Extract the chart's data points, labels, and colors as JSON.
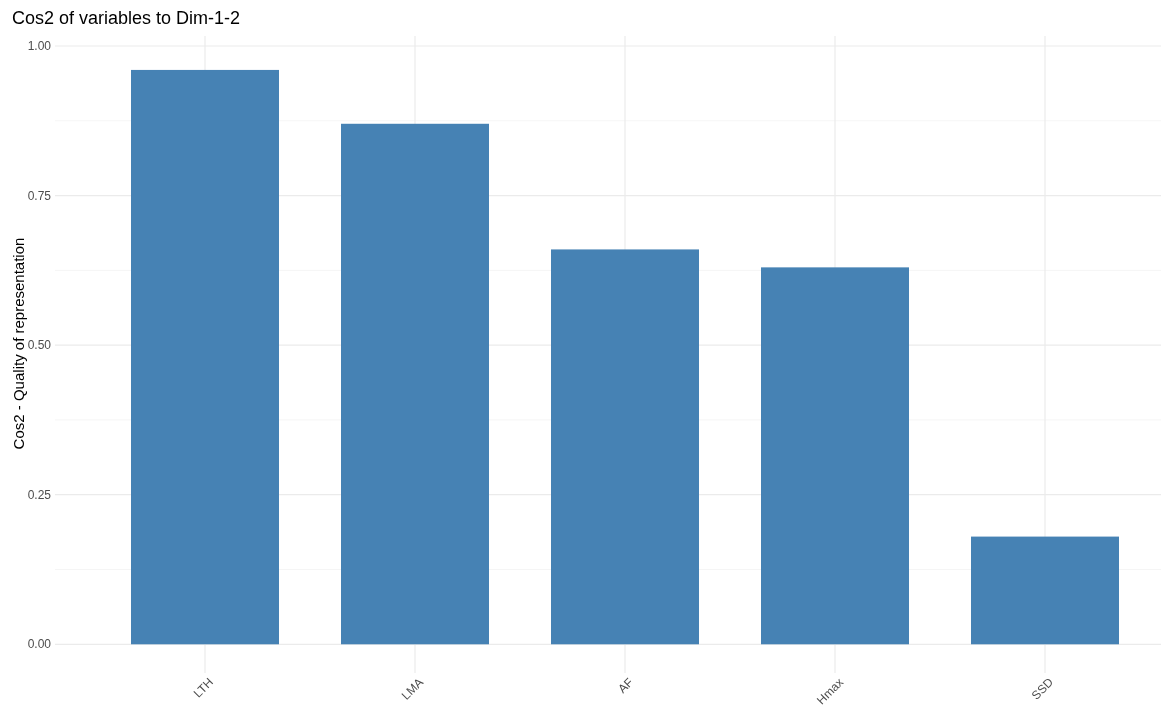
{
  "chart_data": {
    "type": "bar",
    "title": "Cos2 of variables to Dim-1-2",
    "ylabel": "Cos2 - Quality of representation",
    "categories": [
      "LTH",
      "LMA",
      "AF",
      "Hmax",
      "SSD"
    ],
    "values": [
      0.96,
      0.87,
      0.66,
      0.63,
      0.18
    ],
    "color": "#4682b4",
    "ylim": [
      -0.048,
      1.0
    ],
    "yticks": [
      {
        "value": 0,
        "label": "0.00"
      },
      {
        "value": 0.25,
        "label": "0.25"
      },
      {
        "value": 0.5,
        "label": "0.50"
      },
      {
        "value": 0.75,
        "label": "0.75"
      },
      {
        "value": 1,
        "label": "1.00"
      }
    ],
    "grid": true
  }
}
